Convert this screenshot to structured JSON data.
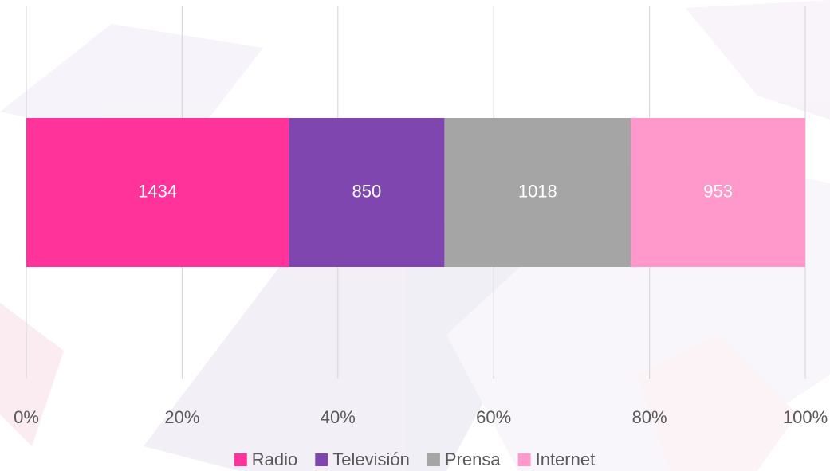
{
  "chart_data": {
    "type": "bar",
    "orientation": "horizontal",
    "stacking": "percent",
    "categories": [
      null
    ],
    "series": [
      {
        "name": "Radio",
        "color": "#ff3399",
        "values": [
          1434
        ]
      },
      {
        "name": "Televisión",
        "color": "#7f46b0",
        "values": [
          850
        ]
      },
      {
        "name": "Prensa",
        "color": "#a5a5a5",
        "values": [
          1018
        ]
      },
      {
        "name": "Internet",
        "color": "#ff99cc",
        "values": [
          953
        ]
      }
    ],
    "xlim": [
      0,
      100
    ],
    "xticks": [
      {
        "value": 0,
        "label": "0%"
      },
      {
        "value": 20,
        "label": "20%"
      },
      {
        "value": 40,
        "label": "40%"
      },
      {
        "value": 60,
        "label": "60%"
      },
      {
        "value": 80,
        "label": "80%"
      },
      {
        "value": 100,
        "label": "100%"
      }
    ],
    "grid": true,
    "legend": "bottom"
  }
}
